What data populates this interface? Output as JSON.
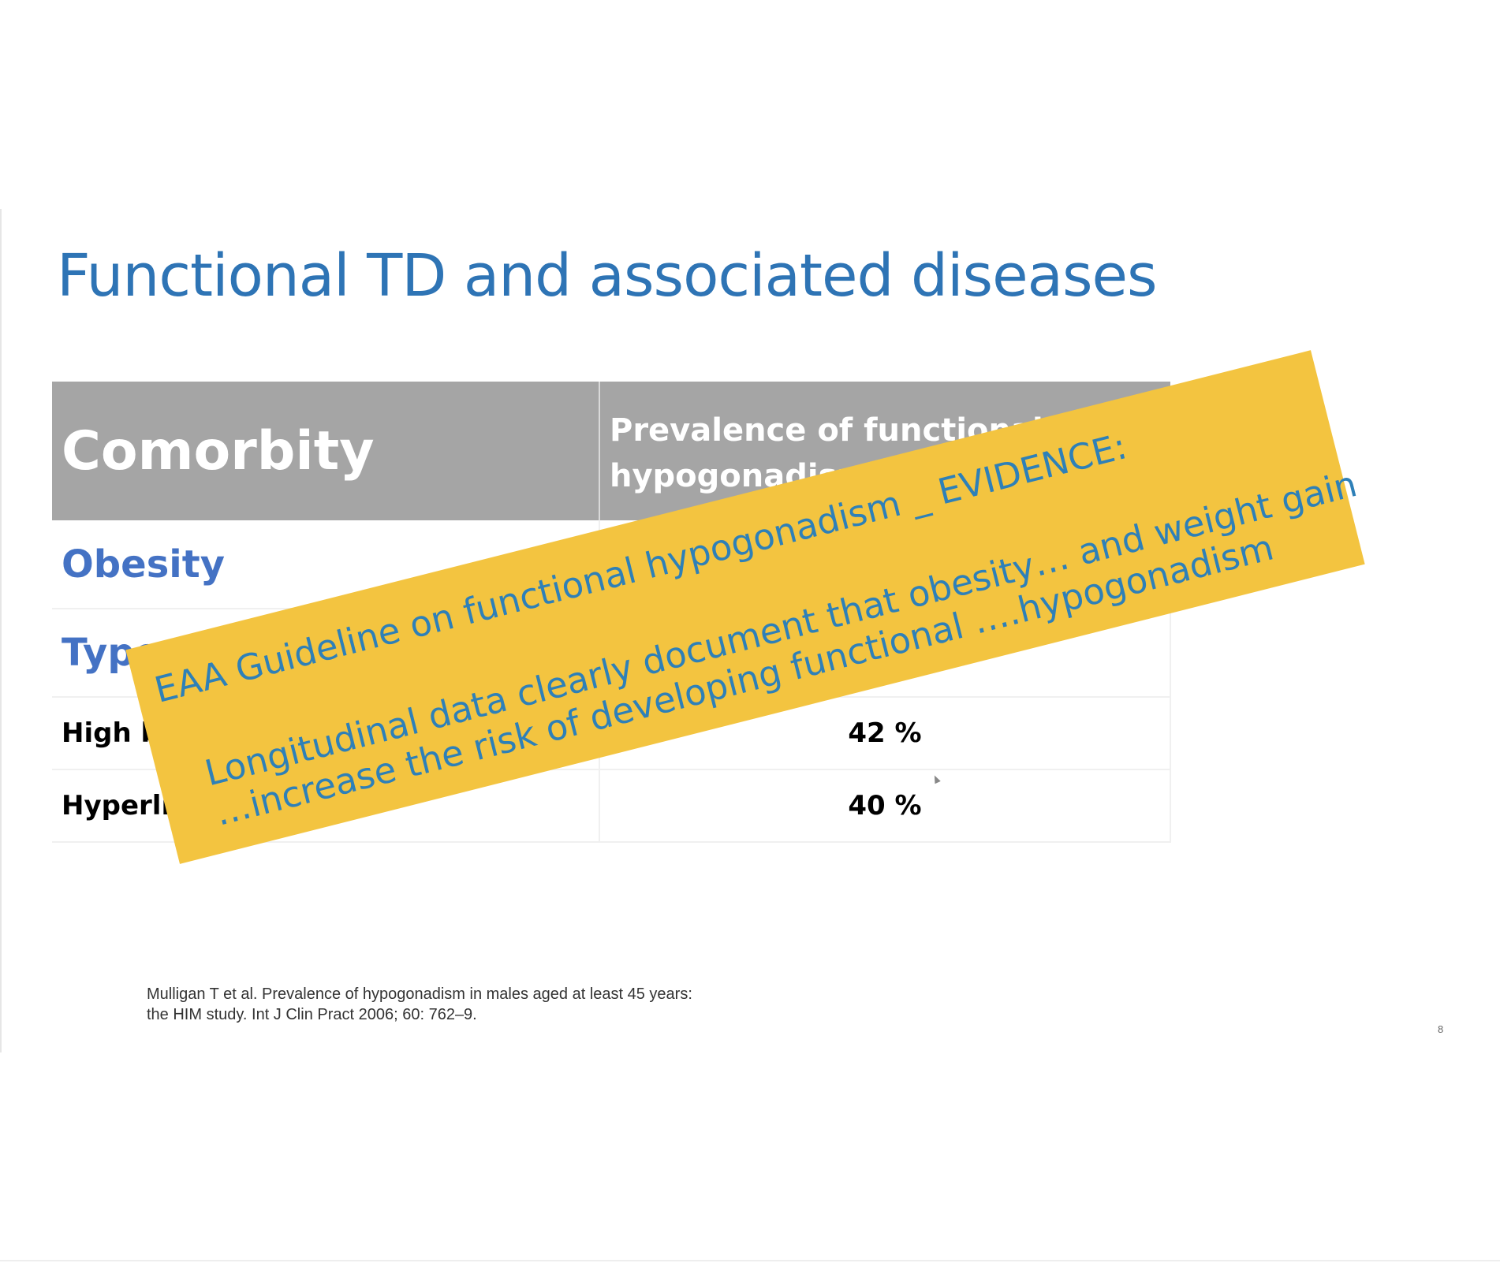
{
  "slide": {
    "title": "Functional TD and associated diseases",
    "page_number": "8"
  },
  "table": {
    "headers": [
      "Comorbity",
      "Prevalence of functional hypogonadism"
    ],
    "rows": [
      {
        "label": "Obesity",
        "value": ""
      },
      {
        "label": "Type",
        "value": ""
      },
      {
        "label": "High blo",
        "value": "42 %"
      },
      {
        "label": "Hyperlipi",
        "value": "40 %"
      }
    ]
  },
  "sticky_note": {
    "line1": "EAA Guideline on functional hypogonadism _ EVIDENCE:",
    "line2": "Longitudinal data clearly document that obesity… and weight gain",
    "line3": "…increase the risk of developing functional ….hypogonadism"
  },
  "citation": {
    "line1": "Mulligan T et al. Prevalence of hypogonadism in males aged at least 45 years:",
    "line2": "the HIM study. Int J Clin Pract 2006; 60: 762–9."
  },
  "colors": {
    "title": "#2e74b5",
    "header_bg": "#a5a5a5",
    "category_blue": "#4472c4",
    "note_bg": "#f3c440",
    "note_text": "#2e80b8"
  }
}
